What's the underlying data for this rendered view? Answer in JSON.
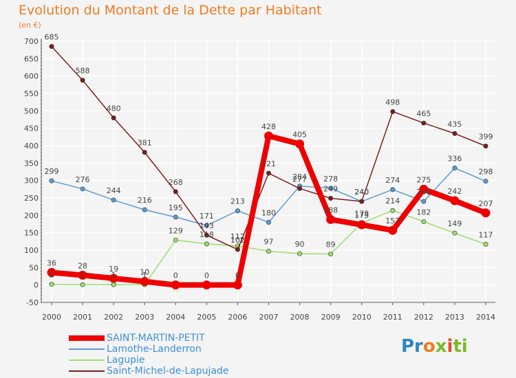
{
  "header": {
    "title": "Evolution du Montant de la Dette par Habitant",
    "unit": "(en €)"
  },
  "logo": {
    "text": "Proxiti"
  },
  "colors": {
    "title": "#f07b1f",
    "legend_text": "#3d8fd9",
    "axis": "#555555",
    "grid_line": "#ffffff"
  },
  "chart_data": {
    "type": "line",
    "title": "Evolution du Montant de la Dette par Habitant",
    "subtitle": "(en €)",
    "xlabel": "",
    "ylabel": "",
    "ylim": [
      -50,
      700
    ],
    "yticks": [
      -50,
      0,
      50,
      100,
      150,
      200,
      250,
      300,
      350,
      400,
      450,
      500,
      550,
      600,
      650,
      700
    ],
    "x": [
      2000,
      2001,
      2002,
      2003,
      2004,
      2005,
      2006,
      2007,
      2008,
      2009,
      2010,
      2011,
      2012,
      2013,
      2014
    ],
    "legend_position": "bottom-left",
    "grid": true,
    "series": [
      {
        "name": "SAINT-MARTIN-PETIT",
        "color": "#ee0000",
        "emphasis": true,
        "values": [
          36,
          28,
          19,
          10,
          0,
          0,
          0,
          428,
          405,
          188,
          173,
          157,
          275,
          242,
          207
        ]
      },
      {
        "name": "Lamothe-Landerron",
        "color": "#5b9bd5",
        "emphasis": false,
        "values": [
          299,
          276,
          244,
          216,
          195,
          171,
          213,
          180,
          284,
          278,
          240,
          274,
          240,
          336,
          298
        ]
      },
      {
        "name": "Lagupie",
        "color": "#9bdd6c",
        "emphasis": false,
        "values": [
          2,
          1,
          1,
          1,
          129,
          118,
          112,
          97,
          90,
          89,
          178,
          214,
          182,
          149,
          117
        ]
      },
      {
        "name": "Saint-Michel-de-Lapujade",
        "color": "#7a1e1e",
        "emphasis": false,
        "values": [
          685,
          588,
          480,
          381,
          268,
          143,
          102,
          321,
          277,
          249,
          240,
          498,
          465,
          435,
          399
        ]
      }
    ]
  }
}
